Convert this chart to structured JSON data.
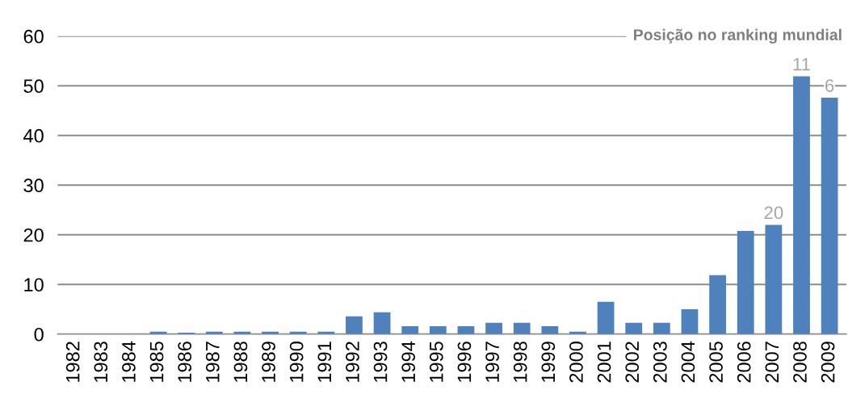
{
  "chart_data": {
    "type": "bar",
    "title": "Posição no ranking mundial",
    "categories": [
      "1982",
      "1983",
      "1984",
      "1985",
      "1986",
      "1987",
      "1988",
      "1989",
      "1990",
      "1991",
      "1992",
      "1993",
      "1994",
      "1995",
      "1996",
      "1997",
      "1998",
      "1999",
      "2000",
      "2001",
      "2002",
      "2003",
      "2004",
      "2005",
      "2006",
      "2007",
      "2008",
      "2009"
    ],
    "values": [
      0,
      0,
      0,
      0.5,
      0.3,
      0.5,
      0.5,
      0.5,
      0.5,
      0.5,
      3.6,
      4.4,
      1.6,
      1.6,
      1.6,
      2.3,
      2.3,
      1.6,
      0.5,
      6.5,
      2.3,
      2.3,
      5.0,
      11.9,
      20.8,
      22,
      51.9,
      47.6
    ],
    "color": "#4f81bd",
    "ylim": [
      0,
      60
    ],
    "yticks": [
      0,
      10,
      20,
      30,
      40,
      50,
      60
    ],
    "grid": "y",
    "annotations": [
      {
        "text": "20",
        "x": "2007",
        "y": 22
      },
      {
        "text": "11",
        "x": "2008",
        "y": 51.9
      },
      {
        "text": "6",
        "x": "2009",
        "y": 47.6
      }
    ]
  }
}
